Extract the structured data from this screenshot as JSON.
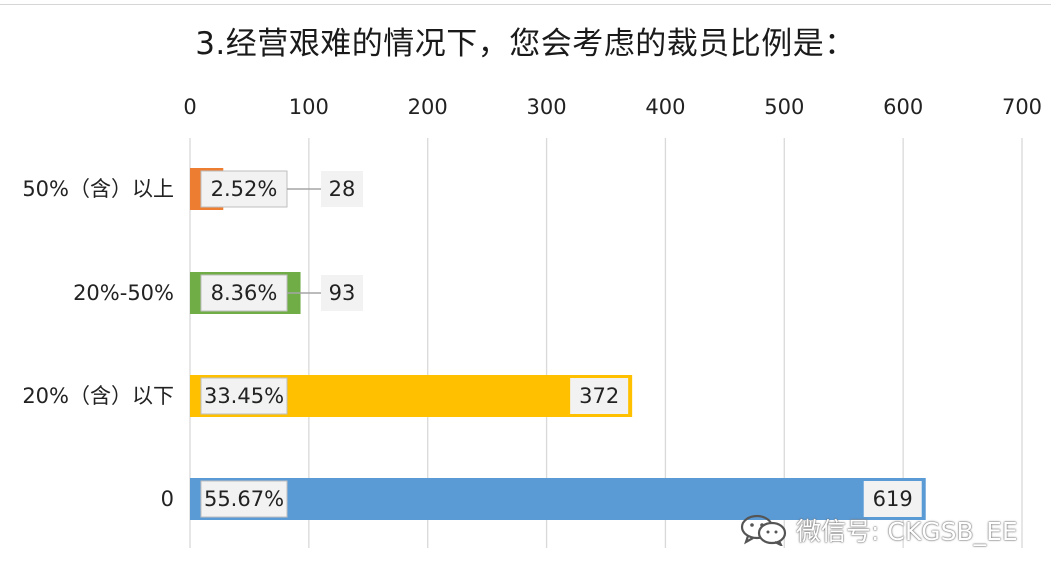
{
  "chart_data": {
    "type": "bar",
    "orientation": "horizontal",
    "title": "3.经营艰难的情况下，您会考虑的裁员比例是：",
    "categories": [
      "50%（含）以上",
      "20%-50%",
      "20%（含）以下",
      "0"
    ],
    "values": [
      28,
      93,
      372,
      619
    ],
    "percent_labels": [
      "2.52%",
      "8.36%",
      "33.45%",
      "55.67%"
    ],
    "value_labels": [
      "28",
      "93",
      "372",
      "619"
    ],
    "colors": [
      "#ED7D31",
      "#70AD47",
      "#FFC000",
      "#5B9BD5"
    ],
    "xlim": [
      0,
      700
    ],
    "xticks": [
      "0",
      "100",
      "200",
      "300",
      "400",
      "500",
      "600",
      "700"
    ],
    "axis_position": "top",
    "grid": true,
    "xlabel": "",
    "ylabel": ""
  },
  "watermark": {
    "icon": "wechat-icon",
    "text": "微信号: CKGSB_EE"
  }
}
